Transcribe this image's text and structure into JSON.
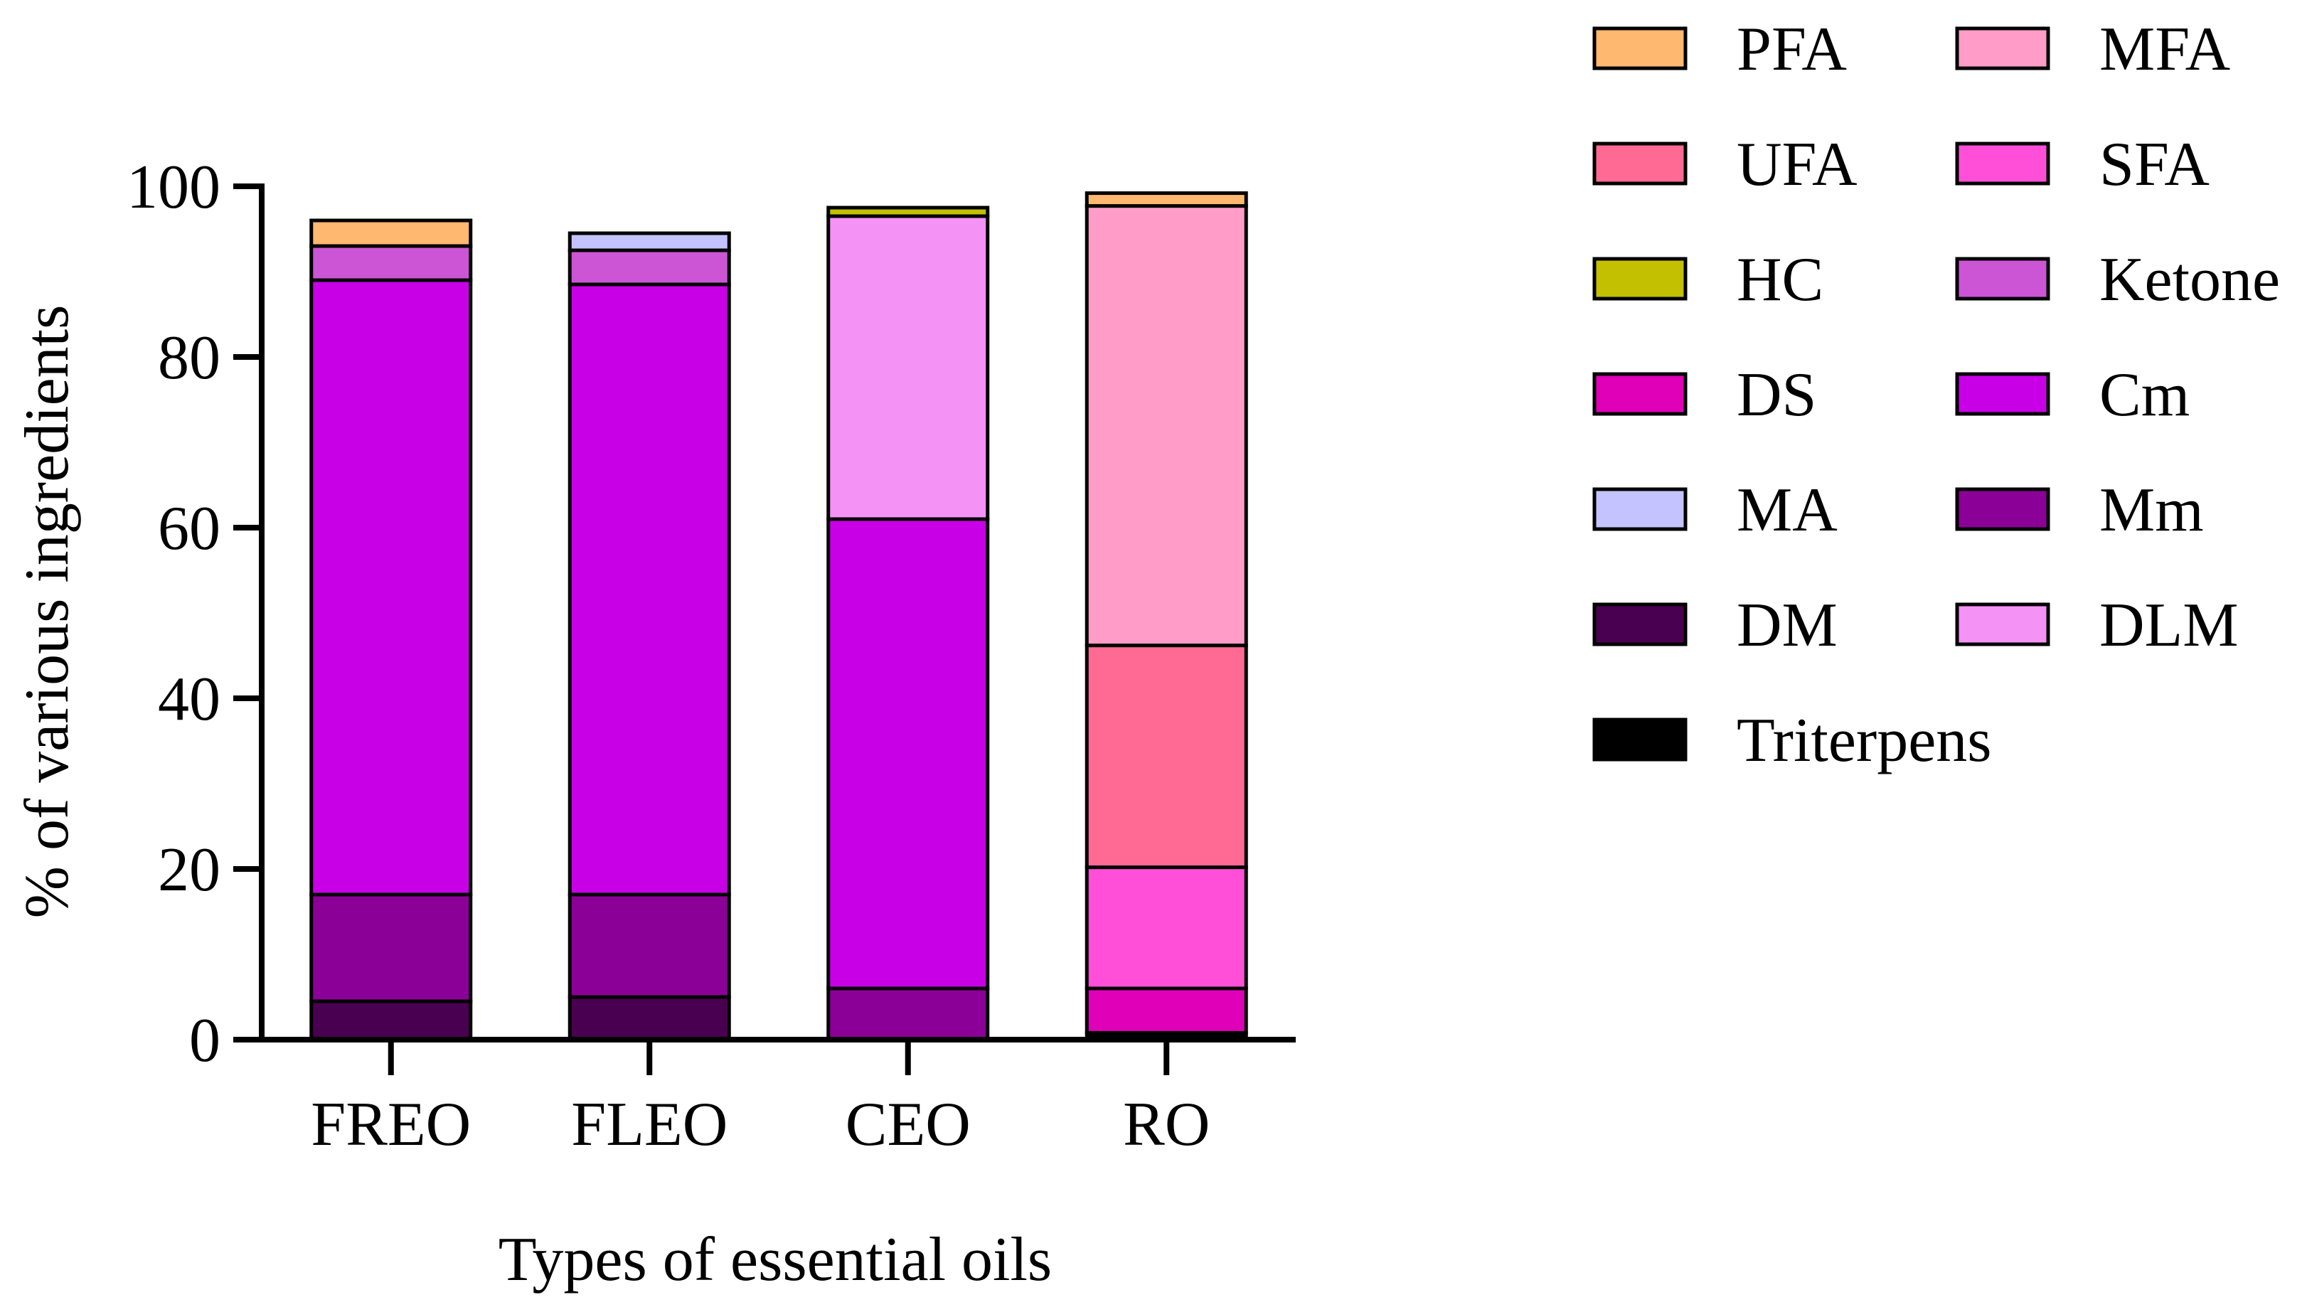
{
  "chart_data": {
    "type": "bar",
    "stacked": true,
    "title": "",
    "xlabel": "Types of essential oils",
    "ylabel": "% of various ingredients",
    "ylim": [
      0,
      100
    ],
    "yticks": [
      0,
      20,
      40,
      60,
      80,
      100
    ],
    "categories": [
      "FREO",
      "FLEO",
      "CEO",
      "RO"
    ],
    "series": [
      {
        "name": "Triterpens",
        "color": "#000000",
        "values": [
          0,
          0,
          0,
          0.8
        ]
      },
      {
        "name": "DM",
        "color": "#4a0050",
        "values": [
          4.5,
          5,
          0,
          0
        ]
      },
      {
        "name": "Mm",
        "color": "#8b0096",
        "values": [
          12.5,
          12,
          6,
          0
        ]
      },
      {
        "name": "DS",
        "color": "#e000b8",
        "values": [
          0,
          0,
          0,
          5.2
        ]
      },
      {
        "name": "SFA",
        "color": "#ff4fd8",
        "values": [
          0,
          0,
          0,
          14.2
        ]
      },
      {
        "name": "UFA",
        "color": "#ff6a95",
        "values": [
          0,
          0,
          0,
          26
        ]
      },
      {
        "name": "Cm",
        "color": "#c800e6",
        "values": [
          72,
          71.5,
          55,
          0
        ]
      },
      {
        "name": "DLM",
        "color": "#f592f6",
        "values": [
          0,
          0,
          35.5,
          0
        ]
      },
      {
        "name": "MFA",
        "color": "#ff9dc8",
        "values": [
          0,
          0,
          0,
          51.5
        ]
      },
      {
        "name": "Ketone",
        "color": "#cc55d6",
        "values": [
          4,
          4,
          0,
          0
        ]
      },
      {
        "name": "MA",
        "color": "#c5c3ff",
        "values": [
          0,
          2,
          0,
          0
        ]
      },
      {
        "name": "HC",
        "color": "#c2c000",
        "values": [
          0,
          0,
          1,
          0
        ]
      },
      {
        "name": "PFA",
        "color": "#ffb870",
        "values": [
          3,
          0,
          0,
          1.5
        ]
      }
    ],
    "legend": {
      "placement": "right",
      "columns": [
        [
          "PFA",
          "UFA",
          "HC",
          "DS",
          "MA",
          "DM",
          "Triterpens"
        ],
        [
          "MFA",
          "SFA",
          "Ketone",
          "Cm",
          "Mm",
          "DLM"
        ]
      ]
    }
  }
}
